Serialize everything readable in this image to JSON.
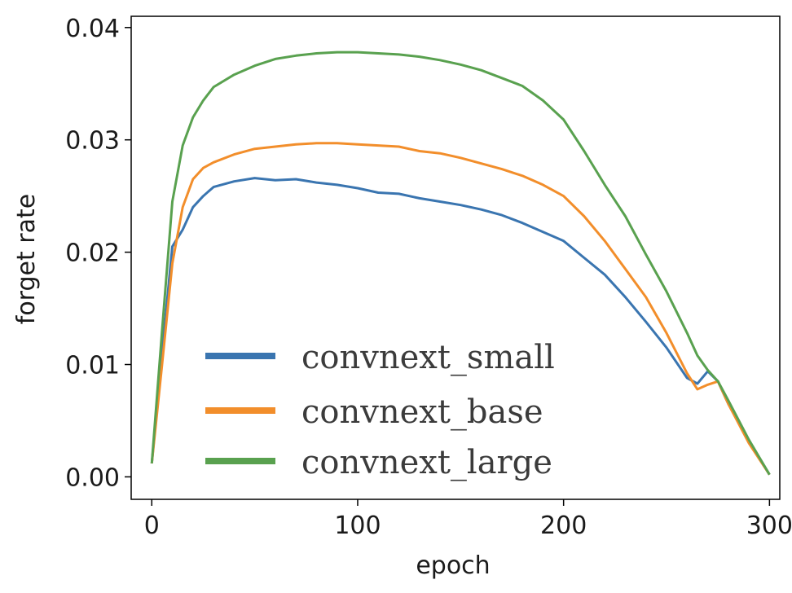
{
  "chart_data": {
    "type": "line",
    "title": "",
    "xlabel": "epoch",
    "ylabel": "forget rate",
    "xlim": [
      -10,
      305
    ],
    "ylim": [
      -0.002,
      0.041
    ],
    "x_ticks": [
      0,
      100,
      200,
      300
    ],
    "x_tick_labels": [
      "0",
      "100",
      "200",
      "300"
    ],
    "y_ticks": [
      0.0,
      0.01,
      0.02,
      0.03,
      0.04
    ],
    "y_tick_labels": [
      "0.00",
      "0.01",
      "0.02",
      "0.03",
      "0.04"
    ],
    "grid": false,
    "legend_position": "lower-center",
    "series": [
      {
        "name": "convnext_small",
        "color": "#3a75b0",
        "x": [
          0,
          5,
          10,
          15,
          20,
          25,
          30,
          40,
          50,
          60,
          70,
          80,
          90,
          100,
          110,
          120,
          130,
          140,
          150,
          160,
          170,
          180,
          190,
          200,
          210,
          220,
          230,
          240,
          250,
          260,
          265,
          270,
          275,
          280,
          290,
          300
        ],
        "y": [
          0.0012,
          0.011,
          0.0205,
          0.022,
          0.024,
          0.025,
          0.0258,
          0.0263,
          0.0266,
          0.0264,
          0.0265,
          0.0262,
          0.026,
          0.0257,
          0.0253,
          0.0252,
          0.0248,
          0.0245,
          0.0242,
          0.0238,
          0.0233,
          0.0226,
          0.0218,
          0.021,
          0.0195,
          0.018,
          0.016,
          0.0138,
          0.0115,
          0.0088,
          0.0083,
          0.0094,
          0.0085,
          0.0065,
          0.0032,
          0.0002
        ]
      },
      {
        "name": "convnext_base",
        "color": "#f28e2b",
        "x": [
          0,
          5,
          10,
          15,
          20,
          25,
          30,
          40,
          50,
          60,
          70,
          80,
          90,
          100,
          110,
          120,
          130,
          140,
          150,
          160,
          170,
          180,
          190,
          200,
          210,
          220,
          230,
          240,
          250,
          260,
          265,
          270,
          275,
          280,
          290,
          300
        ],
        "y": [
          0.0012,
          0.01,
          0.019,
          0.024,
          0.0265,
          0.0275,
          0.028,
          0.0287,
          0.0292,
          0.0294,
          0.0296,
          0.0297,
          0.0297,
          0.0296,
          0.0295,
          0.0294,
          0.029,
          0.0288,
          0.0284,
          0.0279,
          0.0274,
          0.0268,
          0.026,
          0.025,
          0.0232,
          0.021,
          0.0185,
          0.016,
          0.0128,
          0.0092,
          0.0078,
          0.0082,
          0.0085,
          0.0065,
          0.003,
          0.0002
        ]
      },
      {
        "name": "convnext_large",
        "color": "#59a14f",
        "x": [
          0,
          5,
          10,
          15,
          20,
          25,
          30,
          40,
          50,
          60,
          70,
          80,
          90,
          100,
          110,
          120,
          130,
          140,
          150,
          160,
          170,
          180,
          190,
          200,
          210,
          220,
          230,
          240,
          250,
          260,
          265,
          270,
          275,
          280,
          290,
          300
        ],
        "y": [
          0.0012,
          0.013,
          0.0245,
          0.0295,
          0.032,
          0.0335,
          0.0347,
          0.0358,
          0.0366,
          0.0372,
          0.0375,
          0.0377,
          0.0378,
          0.0378,
          0.0377,
          0.0376,
          0.0374,
          0.0371,
          0.0367,
          0.0362,
          0.0355,
          0.0348,
          0.0335,
          0.0318,
          0.029,
          0.026,
          0.0232,
          0.0198,
          0.0165,
          0.0128,
          0.0108,
          0.0095,
          0.0085,
          0.0068,
          0.0033,
          0.0002
        ]
      }
    ]
  }
}
